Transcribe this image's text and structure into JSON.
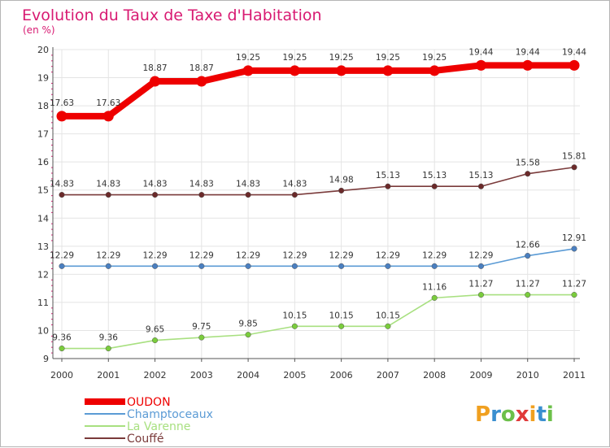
{
  "chart_data": {
    "type": "line",
    "title": "Evolution du Taux de Taxe d'Habitation",
    "subtitle": "(en %)",
    "categories": [
      "2000",
      "2001",
      "2002",
      "2003",
      "2004",
      "2005",
      "2006",
      "2007",
      "2008",
      "2009",
      "2010",
      "2011"
    ],
    "ylim": [
      9,
      20
    ],
    "yticks": [
      9,
      10,
      11,
      12,
      13,
      14,
      15,
      16,
      17,
      18,
      19,
      20
    ],
    "grid": true,
    "legend_position": "bottom-left",
    "series": [
      {
        "name": "OUDON",
        "color": "#ee0000",
        "emphasis": true,
        "values": [
          17.63,
          17.63,
          18.87,
          18.87,
          19.25,
          19.25,
          19.25,
          19.25,
          19.25,
          19.44,
          19.44,
          19.44
        ],
        "labels": [
          "17.63",
          "17.63",
          "18.87",
          "18.87",
          "19.25",
          "19.25",
          "19.25",
          "19.25",
          "19.25",
          "19.44",
          "19.44",
          "19.44"
        ]
      },
      {
        "name": "Champtoceaux",
        "color": "#5b9bd5",
        "point_color": "#4a7fc0",
        "emphasis": false,
        "values": [
          12.29,
          12.29,
          12.29,
          12.29,
          12.29,
          12.29,
          12.29,
          12.29,
          12.29,
          12.29,
          12.66,
          12.91
        ],
        "labels": [
          "12.29",
          "12.29",
          "12.29",
          "12.29",
          "12.29",
          "12.29",
          "12.29",
          "12.29",
          "12.29",
          "12.29",
          "12.66",
          "12.91"
        ]
      },
      {
        "name": "La Varenne",
        "color": "#a8e080",
        "point_color": "#7acc3c",
        "emphasis": false,
        "values": [
          9.36,
          9.36,
          9.65,
          9.75,
          9.85,
          10.15,
          10.15,
          10.15,
          11.16,
          11.27,
          11.27,
          11.27
        ],
        "labels": [
          "9.36",
          "9.36",
          "9.65",
          "9.75",
          "9.85",
          "10.15",
          "10.15",
          "10.15",
          "11.16",
          "11.27",
          "11.27",
          "11.27"
        ]
      },
      {
        "name": "Couffé",
        "color": "#7a3a3a",
        "point_color": "#6b2a2a",
        "emphasis": false,
        "values": [
          14.83,
          14.83,
          14.83,
          14.83,
          14.83,
          14.83,
          14.98,
          15.13,
          15.13,
          15.13,
          15.58,
          15.81
        ],
        "labels": [
          "14.83",
          "14.83",
          "14.83",
          "14.83",
          "14.83",
          "14.83",
          "14.98",
          "15.13",
          "15.13",
          "15.13",
          "15.58",
          "15.81"
        ]
      }
    ]
  },
  "brand": {
    "text": "Proxiti"
  },
  "colors": {
    "title": "#d81a72",
    "grid": "#e4e4e4",
    "axis": "#555555",
    "tick_minor": "#d81a72"
  }
}
